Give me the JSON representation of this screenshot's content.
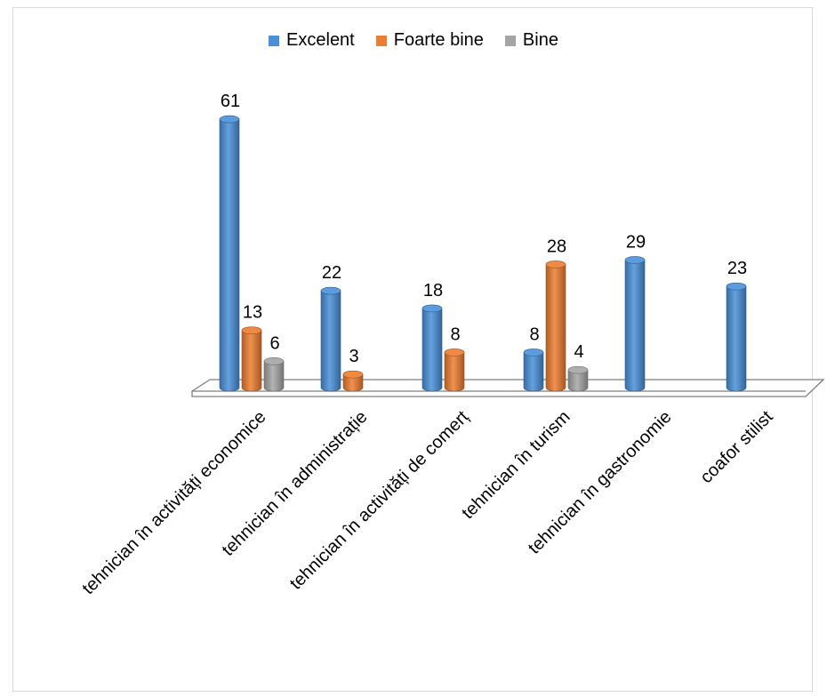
{
  "chart_data": {
    "type": "bar",
    "style": "3d-cylinder",
    "categories": [
      "tehnician în activități economice",
      "tehnician în administrație",
      "tehnician în activități de comerț",
      "tehnician în turism",
      "tehnician în gastronomie",
      "coafor stilist"
    ],
    "series": [
      {
        "name": "Excelent",
        "color": "#4a90d9",
        "values": [
          61,
          22,
          18,
          8,
          29,
          23
        ]
      },
      {
        "name": "Foarte bine",
        "color": "#ed7d31",
        "values": [
          13,
          3,
          8,
          28,
          null,
          null
        ]
      },
      {
        "name": "Bine",
        "color": "#a5a5a5",
        "values": [
          6,
          null,
          null,
          4,
          null,
          null
        ]
      }
    ],
    "legend_position": "top-center",
    "grid": false,
    "title": "",
    "xlabel": "",
    "ylabel": ""
  }
}
